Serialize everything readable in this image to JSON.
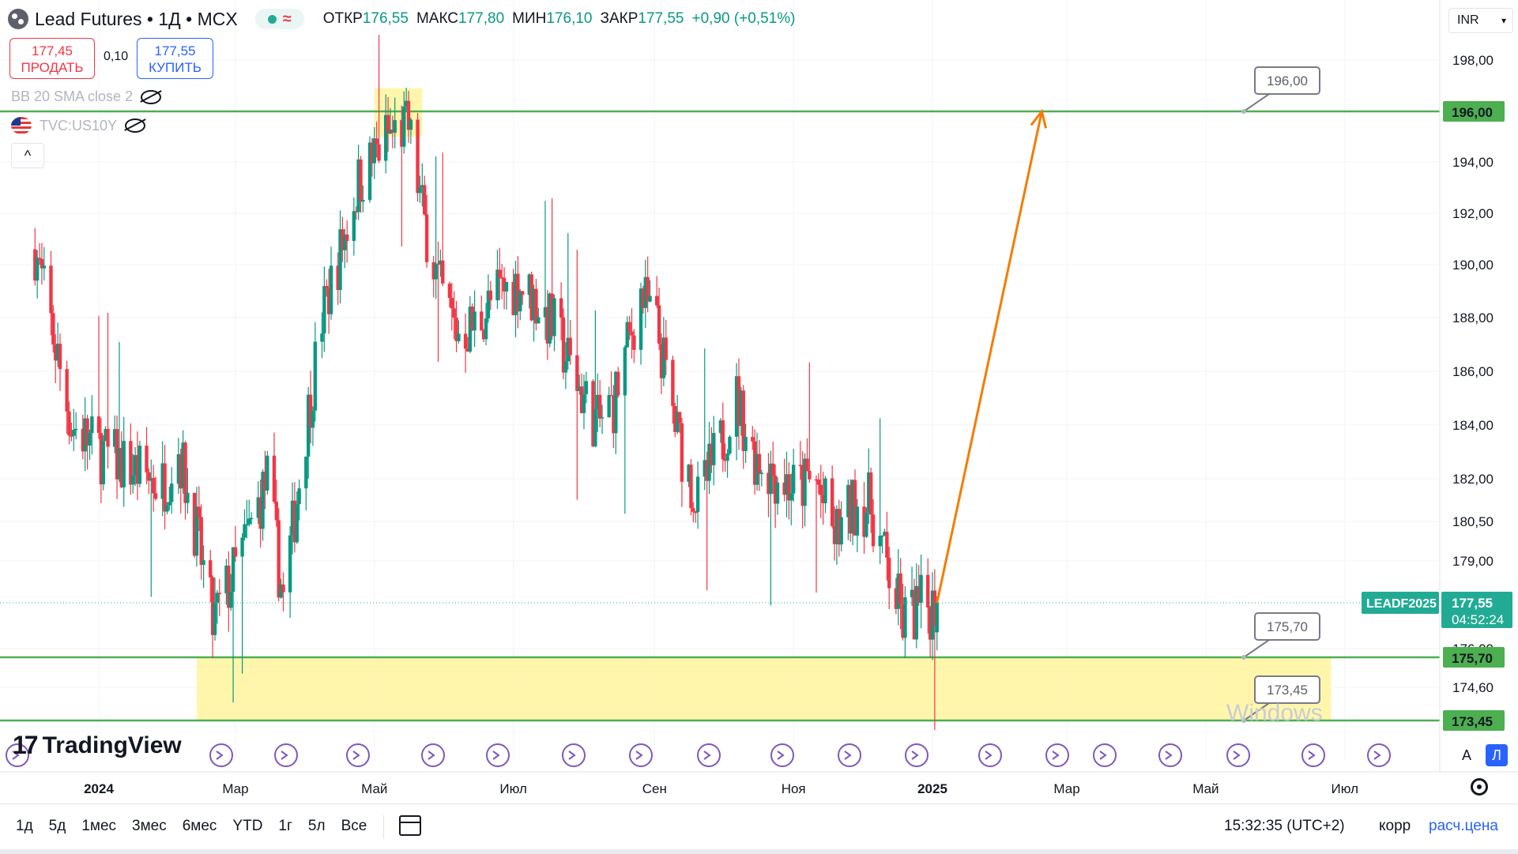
{
  "header": {
    "symbol_title": "Lead Futures • 1Д • MCX",
    "ohlc": [
      {
        "label": "ОТКР",
        "value": "176,55"
      },
      {
        "label": "МАКС",
        "value": "177,80"
      },
      {
        "label": "МИН",
        "value": "176,10"
      },
      {
        "label": "ЗАКР",
        "value": "177,55"
      },
      {
        "label": "",
        "value": "+0,90 (+0,51%)"
      }
    ],
    "pill_wave": "≈"
  },
  "trade": {
    "sell_price": "177,45",
    "sell_label": "ПРОДАТЬ",
    "spread": "0,10",
    "buy_price": "177,55",
    "buy_label": "КУПИТЬ"
  },
  "indicators": {
    "bb": "BB 20 SMA close 2",
    "compare": "TVC:US10Y",
    "collapse": "^"
  },
  "currency": "INR",
  "logo_text": "TradingView",
  "watermark": "Windows",
  "scale_buttons": {
    "auto": "A",
    "log": "Л"
  },
  "bottom": {
    "ranges": [
      "1д",
      "5д",
      "1мес",
      "3мес",
      "6мес",
      "YTD",
      "1г",
      "5л",
      "Все"
    ],
    "clock": "15:32:35 (UTC+2)",
    "adj": "корр",
    "calc": "расч.цена"
  },
  "colors": {
    "up": "#089981",
    "down": "#f23645",
    "level": "#4caf50",
    "zone": "#fff59d",
    "arrow": "#f57c00",
    "badge": "#22ab94",
    "label_border": "#787b86"
  },
  "chart_data": {
    "type": "candlestick",
    "symbol": "LEADF2025",
    "ylim": [
      173.0,
      199.0
    ],
    "y_ticks": [
      "198,00",
      "196,00",
      "194,00",
      "192,00",
      "190,00",
      "188,00",
      "186,00",
      "184,00",
      "182,00",
      "180,50",
      "179,00",
      "176,00",
      "174,60"
    ],
    "x_ticks": [
      "2024",
      "Мар",
      "Май",
      "Июл",
      "Сен",
      "Ноя",
      "2025",
      "Мар",
      "Май",
      "Июл"
    ],
    "last_price": {
      "value": 177.55,
      "label": "177,55",
      "countdown": "04:52:24"
    },
    "levels": [
      {
        "value": 196.0,
        "label": "196,00"
      },
      {
        "value": 175.7,
        "label": "175,70"
      },
      {
        "value": 173.45,
        "label": "173,45"
      }
    ],
    "zones": [
      {
        "from_date": "2024-05-01",
        "to_date": "2024-05-22",
        "low": 195.0,
        "high": 196.9
      },
      {
        "from_date": "2024-02-13",
        "to_date": "2025-06-25",
        "low": 173.45,
        "high": 175.7
      }
    ],
    "forecast_arrow": {
      "from": {
        "date": "2025-01-03",
        "value": 177.55
      },
      "to": {
        "date": "2025-02-18",
        "value": 196.0
      }
    },
    "trend_closes": [
      [
        "2023-12-04",
        190.6
      ],
      [
        "2023-12-20",
        184.0
      ],
      [
        "2024-01-02",
        183.0
      ],
      [
        "2024-01-15",
        182.4
      ],
      [
        "2024-01-29",
        181.8
      ],
      [
        "2024-02-05",
        183.1
      ],
      [
        "2024-02-13",
        180.0
      ],
      [
        "2024-02-20",
        176.8
      ],
      [
        "2024-03-01",
        178.7
      ],
      [
        "2024-03-15",
        182.0
      ],
      [
        "2024-03-22",
        177.6
      ],
      [
        "2024-04-01",
        183.9
      ],
      [
        "2024-04-08",
        188.0
      ],
      [
        "2024-04-16",
        190.5
      ],
      [
        "2024-04-24",
        193.2
      ],
      [
        "2024-05-06",
        195.0
      ],
      [
        "2024-05-16",
        195.4
      ],
      [
        "2024-05-23",
        191.6
      ],
      [
        "2024-05-30",
        189.0
      ],
      [
        "2024-06-06",
        187.5
      ],
      [
        "2024-06-14",
        187.7
      ],
      [
        "2024-06-24",
        188.9
      ],
      [
        "2024-07-03",
        189.3
      ],
      [
        "2024-07-11",
        188.6
      ],
      [
        "2024-07-19",
        187.6
      ],
      [
        "2024-08-01",
        185.0
      ],
      [
        "2024-08-07",
        184.0
      ],
      [
        "2024-08-14",
        184.8
      ],
      [
        "2024-08-26",
        188.9
      ],
      [
        "2024-09-02",
        187.6
      ],
      [
        "2024-09-11",
        183.6
      ],
      [
        "2024-09-20",
        181.1
      ],
      [
        "2024-09-30",
        183.3
      ],
      [
        "2024-10-07",
        185.0
      ],
      [
        "2024-10-14",
        183.0
      ],
      [
        "2024-10-21",
        182.4
      ],
      [
        "2024-11-01",
        181.7
      ],
      [
        "2024-11-11",
        181.9
      ],
      [
        "2024-11-19",
        179.9
      ],
      [
        "2024-11-29",
        181.2
      ],
      [
        "2024-12-05",
        181.0
      ],
      [
        "2024-12-12",
        178.8
      ],
      [
        "2024-12-19",
        176.9
      ],
      [
        "2024-12-25",
        177.3
      ],
      [
        "2025-01-03",
        177.55
      ]
    ]
  }
}
